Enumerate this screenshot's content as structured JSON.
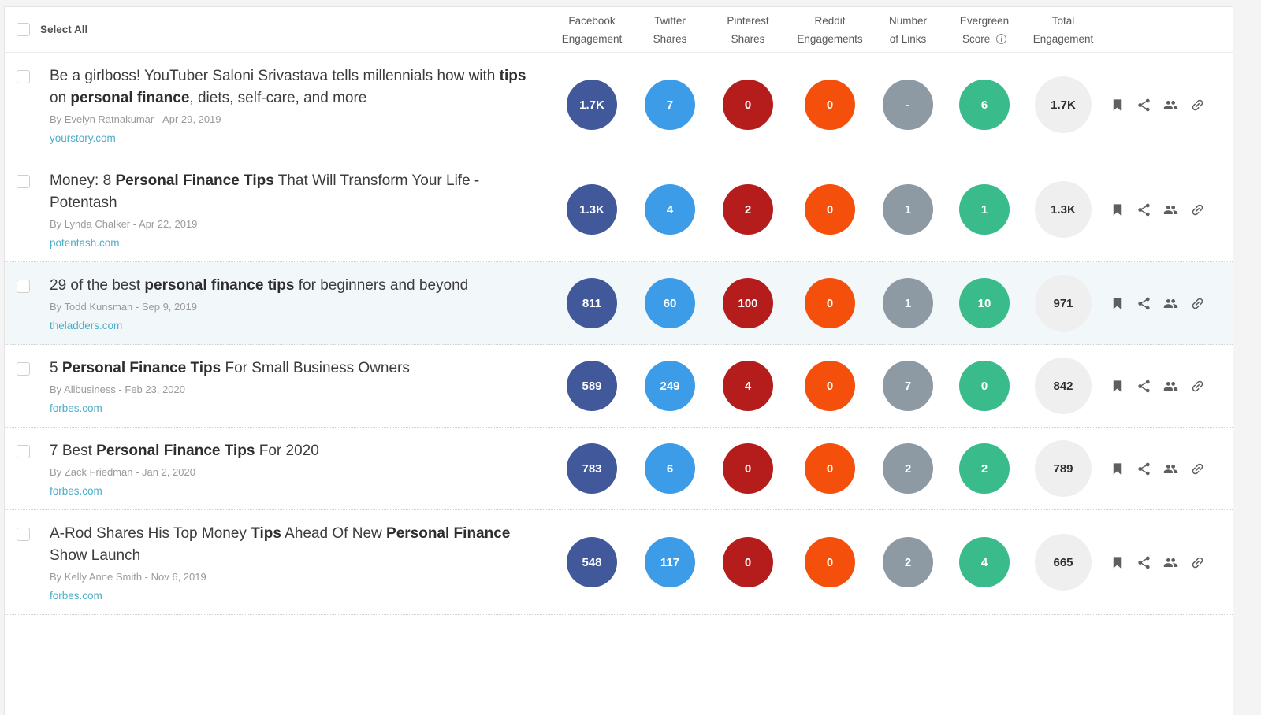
{
  "header": {
    "select_all_label": "Select All",
    "columns": [
      {
        "line1": "Facebook",
        "line2": "Engagement",
        "key": "facebook"
      },
      {
        "line1": "Twitter",
        "line2": "Shares",
        "key": "twitter"
      },
      {
        "line1": "Pinterest",
        "line2": "Shares",
        "key": "pinterest"
      },
      {
        "line1": "Reddit",
        "line2": "Engagements",
        "key": "reddit"
      },
      {
        "line1": "Number",
        "line2": "of Links",
        "key": "links"
      },
      {
        "line1": "Evergreen",
        "line2": "Score",
        "key": "evergreen",
        "info_icon": "i"
      },
      {
        "line1": "Total",
        "line2": "Engagement",
        "key": "total"
      }
    ]
  },
  "colors": {
    "facebook": "#41589b",
    "twitter": "#3d9ce8",
    "pinterest": "#b51d1d",
    "reddit": "#f4500b",
    "links": "#8d99a3",
    "evergreen": "#39bb8c",
    "total_bg": "#efefef",
    "domain_link": "#4dadc9"
  },
  "action_icons": [
    "bookmark-icon",
    "share-icon",
    "users-icon",
    "backlink-icon"
  ],
  "rows": [
    {
      "title_segments": [
        {
          "text": "Be a girlboss! YouTuber Saloni Srivastava tells millennials how with ",
          "bold": false
        },
        {
          "text": "tips",
          "bold": true
        },
        {
          "text": " on ",
          "bold": false
        },
        {
          "text": "personal finance",
          "bold": true
        },
        {
          "text": ", diets, self-care, and more",
          "bold": false
        }
      ],
      "byline": "By Evelyn Ratnakumar - Apr 29, 2019",
      "domain": "yourstory.com",
      "highlighted": false,
      "metrics": {
        "facebook": "1.7K",
        "twitter": "7",
        "pinterest": "0",
        "reddit": "0",
        "links": "-",
        "evergreen": "6",
        "total": "1.7K"
      }
    },
    {
      "title_segments": [
        {
          "text": "Money: 8 ",
          "bold": false
        },
        {
          "text": "Personal Finance Tips",
          "bold": true
        },
        {
          "text": " That Will Transform Your Life - Potentash",
          "bold": false
        }
      ],
      "byline": "By Lynda Chalker - Apr 22, 2019",
      "domain": "potentash.com",
      "highlighted": false,
      "metrics": {
        "facebook": "1.3K",
        "twitter": "4",
        "pinterest": "2",
        "reddit": "0",
        "links": "1",
        "evergreen": "1",
        "total": "1.3K"
      }
    },
    {
      "title_segments": [
        {
          "text": "29 of the best ",
          "bold": false
        },
        {
          "text": "personal finance tips",
          "bold": true
        },
        {
          "text": " for beginners and beyond",
          "bold": false
        }
      ],
      "byline": "By Todd Kunsman - Sep 9, 2019",
      "domain": "theladders.com",
      "highlighted": true,
      "metrics": {
        "facebook": "811",
        "twitter": "60",
        "pinterest": "100",
        "reddit": "0",
        "links": "1",
        "evergreen": "10",
        "total": "971"
      }
    },
    {
      "title_segments": [
        {
          "text": "5 ",
          "bold": false
        },
        {
          "text": "Personal Finance Tips",
          "bold": true
        },
        {
          "text": " For Small Business Owners",
          "bold": false
        }
      ],
      "byline": "By Allbusiness - Feb 23, 2020",
      "domain": "forbes.com",
      "highlighted": false,
      "metrics": {
        "facebook": "589",
        "twitter": "249",
        "pinterest": "4",
        "reddit": "0",
        "links": "7",
        "evergreen": "0",
        "total": "842"
      }
    },
    {
      "title_segments": [
        {
          "text": "7 Best ",
          "bold": false
        },
        {
          "text": "Personal Finance Tips",
          "bold": true
        },
        {
          "text": " For 2020",
          "bold": false
        }
      ],
      "byline": "By Zack Friedman - Jan 2, 2020",
      "domain": "forbes.com",
      "highlighted": false,
      "metrics": {
        "facebook": "783",
        "twitter": "6",
        "pinterest": "0",
        "reddit": "0",
        "links": "2",
        "evergreen": "2",
        "total": "789"
      }
    },
    {
      "title_segments": [
        {
          "text": "A-Rod Shares His Top Money ",
          "bold": false
        },
        {
          "text": "Tips",
          "bold": true
        },
        {
          "text": " Ahead Of New ",
          "bold": false
        },
        {
          "text": "Personal Finance",
          "bold": true
        },
        {
          "text": " Show Launch",
          "bold": false
        }
      ],
      "byline": "By Kelly Anne Smith - Nov 6, 2019",
      "domain": "forbes.com",
      "highlighted": false,
      "metrics": {
        "facebook": "548",
        "twitter": "117",
        "pinterest": "0",
        "reddit": "0",
        "links": "2",
        "evergreen": "4",
        "total": "665"
      }
    }
  ]
}
